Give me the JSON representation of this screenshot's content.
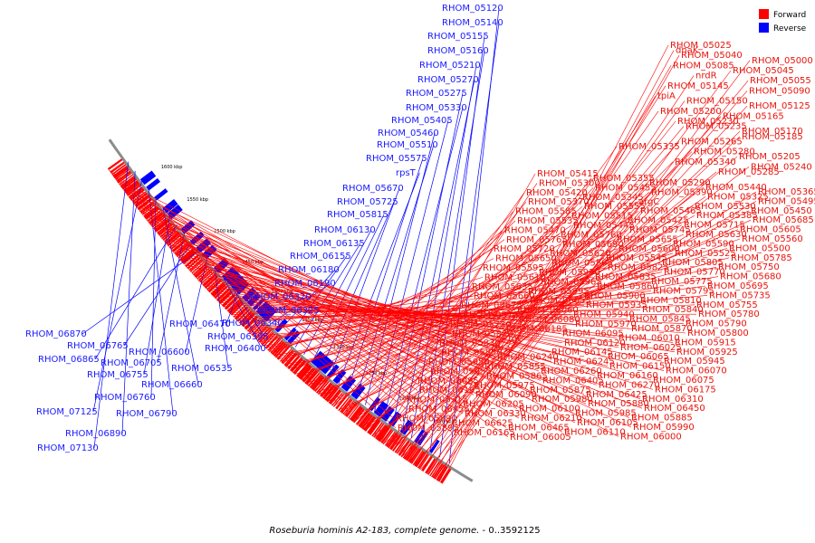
{
  "caption": {
    "organism": "Roseburia hominis A2-183, complete genome.",
    "suffix": " - 0..3592125"
  },
  "legend": [
    {
      "label": "Forward",
      "color": "#ff0000"
    },
    {
      "label": "Reverse",
      "color": "#0000ff"
    }
  ],
  "colors": {
    "forward": "#ff0000",
    "reverse": "#0000ff",
    "backbone": "#8c8c8c"
  },
  "ticks": [
    "1150 kbp",
    "1200 kbp",
    "1250 kbp",
    "1300 kbp",
    "1350 kbp",
    "1400 kbp",
    "1450 kbp",
    "1500 kbp",
    "1550 kbp",
    "1600 kbp"
  ],
  "reverse_labels": [
    "RHOM_05120",
    "RHOM_05140",
    "RHOM_05155",
    "RHOM_05160",
    "RHOM_05210",
    "RHOM_05270",
    "RHOM_05275",
    "RHOM_05330",
    "RHOM_05405",
    "RHOM_05460",
    "RHOM_05510",
    "RHOM_05575",
    "rpsT",
    "RHOM_05670",
    "RHOM_05725",
    "RHOM_05815",
    "RHOM_06130",
    "RHOM_06135",
    "RHOM_06155",
    "RHOM_06180",
    "RHOM_06190",
    "RHOM_06320",
    "RHOM_06325",
    "RHOM_06340",
    "RHOM_06470",
    "RHOM_06395",
    "RHOM_06400",
    "RHOM_06535",
    "RHOM_06600",
    "RHOM_06870",
    "RHOM_06765",
    "RHOM_06705",
    "RHOM_06865",
    "RHOM_06755",
    "RHOM_06660",
    "RHOM_06760",
    "RHOM_06790",
    "RHOM_07125",
    "RHOM_06890",
    "RHOM_07130"
  ],
  "forward_labels": [
    "RHOM_05025",
    "dnaK",
    "RHOM_05040",
    "RHOM_05000",
    "RHOM_05085",
    "RHOM_05045",
    "nrdR",
    "RHOM_05055",
    "RHOM_05145",
    "RHOM_05090",
    "tpiA",
    "RHOM_05150",
    "RHOM_05125",
    "RHOM_05200",
    "RHOM_05165",
    "RHOM_05230",
    "RHOM_05235",
    "RHOM_05170",
    "RHOM_05185",
    "RHOM_05265",
    "RHOM_05335",
    "RHOM_05280",
    "RHOM_05205",
    "RHOM_05340",
    "RHOM_05240",
    "RHOM_05285",
    "RHOM_05415",
    "RHOM_05355",
    "RHOM_05290",
    "RHOM_05440",
    "RHOM_05365",
    "RHOM_05300",
    "RHOM_05455",
    "RHOM_05390",
    "RHOM_05325",
    "RHOM_05495",
    "RHOM_05420",
    "RHOM_05345",
    "argC",
    "RHOM_05530",
    "RHOM_05450",
    "RHOM_05370",
    "RHOM_05555",
    "RHOM_05465",
    "RHOM_05385",
    "RHOM_05685",
    "RHOM_05585",
    "RHOM_05515",
    "RHOM_05425",
    "RHOM_05715",
    "RHOM_05605",
    "RHOM_05535",
    "RHOM_05445",
    "RHOM_05745",
    "RHOM_05630",
    "RHOM_05560",
    "RHOM_05470",
    "RHOM_05760",
    "RHOM_05655",
    "RHOM_05590",
    "RHOM_05500",
    "RHOM_05765",
    "RHOM_05690",
    "RHOM_05600",
    "RHOM_05525",
    "RHOM_05785",
    "RHOM_05720",
    "RHOM_05620",
    "RHOM_05545",
    "RHOM_05805",
    "RHOM_05750",
    "RHOM_05650",
    "RHOM_05565",
    "RHOM_05825",
    "RHOM_05770",
    "RHOM_05680",
    "RHOM_05595",
    "RHOM_05930",
    "RHOM_05835",
    "RHOM_05775",
    "RHOM_05695",
    "RHOM_05610",
    "RHOM_05965",
    "RHOM_05860",
    "RHOM_05795",
    "RHOM_05735",
    "RHOM_05635",
    "RHOM_05995",
    "RHOM_05900",
    "RHOM_05810",
    "RHOM_05755",
    "RHOM_05660",
    "RHOM_06055",
    "RHOM_05935",
    "RHOM_05840",
    "RHOM_05780",
    "RHOM_05675",
    "RHOM_06060",
    "RHOM_05940",
    "RHOM_05845",
    "RHOM_05790",
    "RHOM_05705",
    "RHOM_06080",
    "RHOM_05970",
    "RHOM_05870",
    "RHOM_05800",
    "RHOM_05730",
    "RHOM_06185",
    "RHOM_06095",
    "RHOM_06010",
    "RHOM_05915",
    "RHOM_05820",
    "tgt",
    "RHOM_06120",
    "RHOM_06025",
    "RHOM_05925",
    "RHOM_05830",
    "era",
    "RHOM_06145",
    "RHOM_06065",
    "RHOM_05945",
    "RHOM_05850",
    "RHOM_06240",
    "RHOM_06245",
    "RHOM_06150",
    "RHOM_06070",
    "RHOM_05950",
    "RHOM_05855",
    "RHOM_06260",
    "RHOM_06160",
    "RHOM_06075",
    "RHOM_05955",
    "RHOM_05865",
    "RHOM_06405",
    "RHOM_06270",
    "RHOM_06175",
    "RHOM_06085",
    "RHOM_05975",
    "RHOM_05875",
    "RHOM_06425",
    "RHOM_06310",
    "RHOM_06195",
    "RHOM_06090",
    "RHOM_05980",
    "RHOM_05880",
    "RHOM_06450",
    "RHOM_06315",
    "RHOM_06205",
    "RHOM_06100",
    "RHOM_05985",
    "RHOM_05885",
    "RHOM_06455",
    "RHOM_06330",
    "RHOM_06210",
    "RHOM_06105",
    "RHOM_05990",
    "RHOM_05890",
    "RHOM_06625",
    "RHOM_06465",
    "RHOM_06110",
    "RHOM_06000",
    "RHOM_05895",
    "RHOM_06165",
    "RHOM_06005"
  ]
}
